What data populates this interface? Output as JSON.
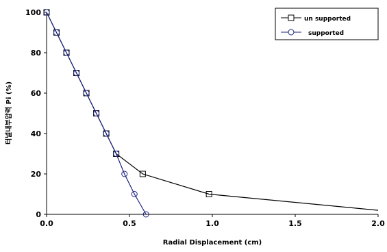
{
  "chart_data": {
    "type": "line",
    "title": "",
    "xlabel": "Radial Displacement (cm)",
    "ylabel": "터널내부압력  Pi (%)",
    "xlim": [
      0,
      2.0
    ],
    "ylim": [
      0,
      100
    ],
    "x_ticks": [
      "0.0",
      "0.5",
      "1.0",
      "1.5",
      "2.0"
    ],
    "y_ticks": [
      "0",
      "20",
      "40",
      "60",
      "80",
      "100"
    ],
    "grid": false,
    "legend_position": "top-right",
    "series": [
      {
        "name": "un supported",
        "marker": "square",
        "color": "#000000",
        "points": [
          [
            0.0,
            100
          ],
          [
            0.06,
            90
          ],
          [
            0.12,
            80
          ],
          [
            0.18,
            70
          ],
          [
            0.24,
            60
          ],
          [
            0.3,
            50
          ],
          [
            0.36,
            40
          ],
          [
            0.42,
            30
          ],
          [
            0.58,
            20
          ],
          [
            0.98,
            10
          ],
          [
            2.0,
            2
          ]
        ],
        "markers_at": [
          [
            0.0,
            100
          ],
          [
            0.06,
            90
          ],
          [
            0.12,
            80
          ],
          [
            0.18,
            70
          ],
          [
            0.24,
            60
          ],
          [
            0.3,
            50
          ],
          [
            0.36,
            40
          ],
          [
            0.42,
            30
          ],
          [
            0.58,
            20
          ],
          [
            0.98,
            10
          ]
        ]
      },
      {
        "name": "supported",
        "marker": "circle",
        "color": "#1a237e",
        "points": [
          [
            0.0,
            100
          ],
          [
            0.06,
            90
          ],
          [
            0.12,
            80
          ],
          [
            0.18,
            70
          ],
          [
            0.24,
            60
          ],
          [
            0.3,
            50
          ],
          [
            0.36,
            40
          ],
          [
            0.42,
            30
          ],
          [
            0.47,
            20
          ],
          [
            0.53,
            10
          ],
          [
            0.6,
            0
          ]
        ],
        "markers_at": [
          [
            0.0,
            100
          ],
          [
            0.06,
            90
          ],
          [
            0.12,
            80
          ],
          [
            0.18,
            70
          ],
          [
            0.24,
            60
          ],
          [
            0.3,
            50
          ],
          [
            0.36,
            40
          ],
          [
            0.42,
            30
          ],
          [
            0.47,
            20
          ],
          [
            0.53,
            10
          ],
          [
            0.6,
            0
          ]
        ]
      }
    ]
  }
}
